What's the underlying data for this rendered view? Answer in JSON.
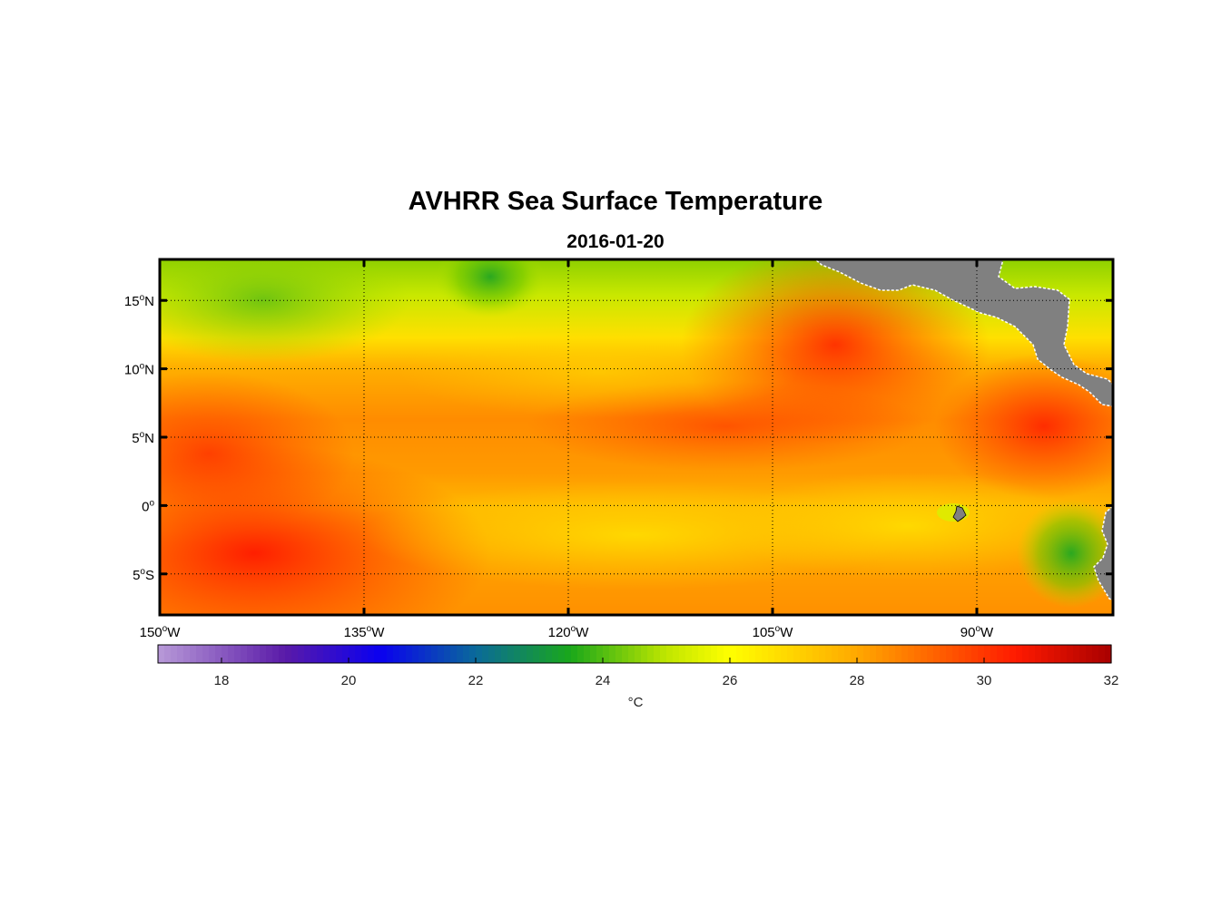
{
  "title": "AVHRR Sea Surface Temperature",
  "subtitle": "2016-01-20",
  "map": {
    "lon_range": [
      -150,
      -80
    ],
    "lat_range": [
      -8,
      18
    ],
    "lon_ticks": [
      {
        "value": -150,
        "deg": "150",
        "hemi": "W"
      },
      {
        "value": -135,
        "deg": "135",
        "hemi": "W"
      },
      {
        "value": -120,
        "deg": "120",
        "hemi": "W"
      },
      {
        "value": -105,
        "deg": "105",
        "hemi": "W"
      },
      {
        "value": -90,
        "deg": "90",
        "hemi": "W"
      }
    ],
    "lat_ticks": [
      {
        "value": 15,
        "deg": "15",
        "hemi": "N"
      },
      {
        "value": 10,
        "deg": "10",
        "hemi": "N"
      },
      {
        "value": 5,
        "deg": "5",
        "hemi": "N"
      },
      {
        "value": 0,
        "deg": "0",
        "hemi": ""
      },
      {
        "value": -5,
        "deg": "5",
        "hemi": "S"
      }
    ],
    "land_color": "#808080",
    "grid": "dotted"
  },
  "colorbar": {
    "range": [
      17,
      32
    ],
    "ticks": [
      "18",
      "20",
      "22",
      "24",
      "26",
      "28",
      "30",
      "32"
    ],
    "unit": "°C",
    "stops": [
      {
        "v": 17,
        "c": "#b89ad8"
      },
      {
        "v": 19,
        "c": "#5a1aa8"
      },
      {
        "v": 20.5,
        "c": "#0a00f0"
      },
      {
        "v": 22,
        "c": "#0a6a9a"
      },
      {
        "v": 23.5,
        "c": "#1aa81a"
      },
      {
        "v": 25,
        "c": "#c0e600"
      },
      {
        "v": 26,
        "c": "#ffff00"
      },
      {
        "v": 28,
        "c": "#ffa800"
      },
      {
        "v": 30.5,
        "c": "#ff1a00"
      },
      {
        "v": 32,
        "c": "#a80000"
      }
    ]
  }
}
